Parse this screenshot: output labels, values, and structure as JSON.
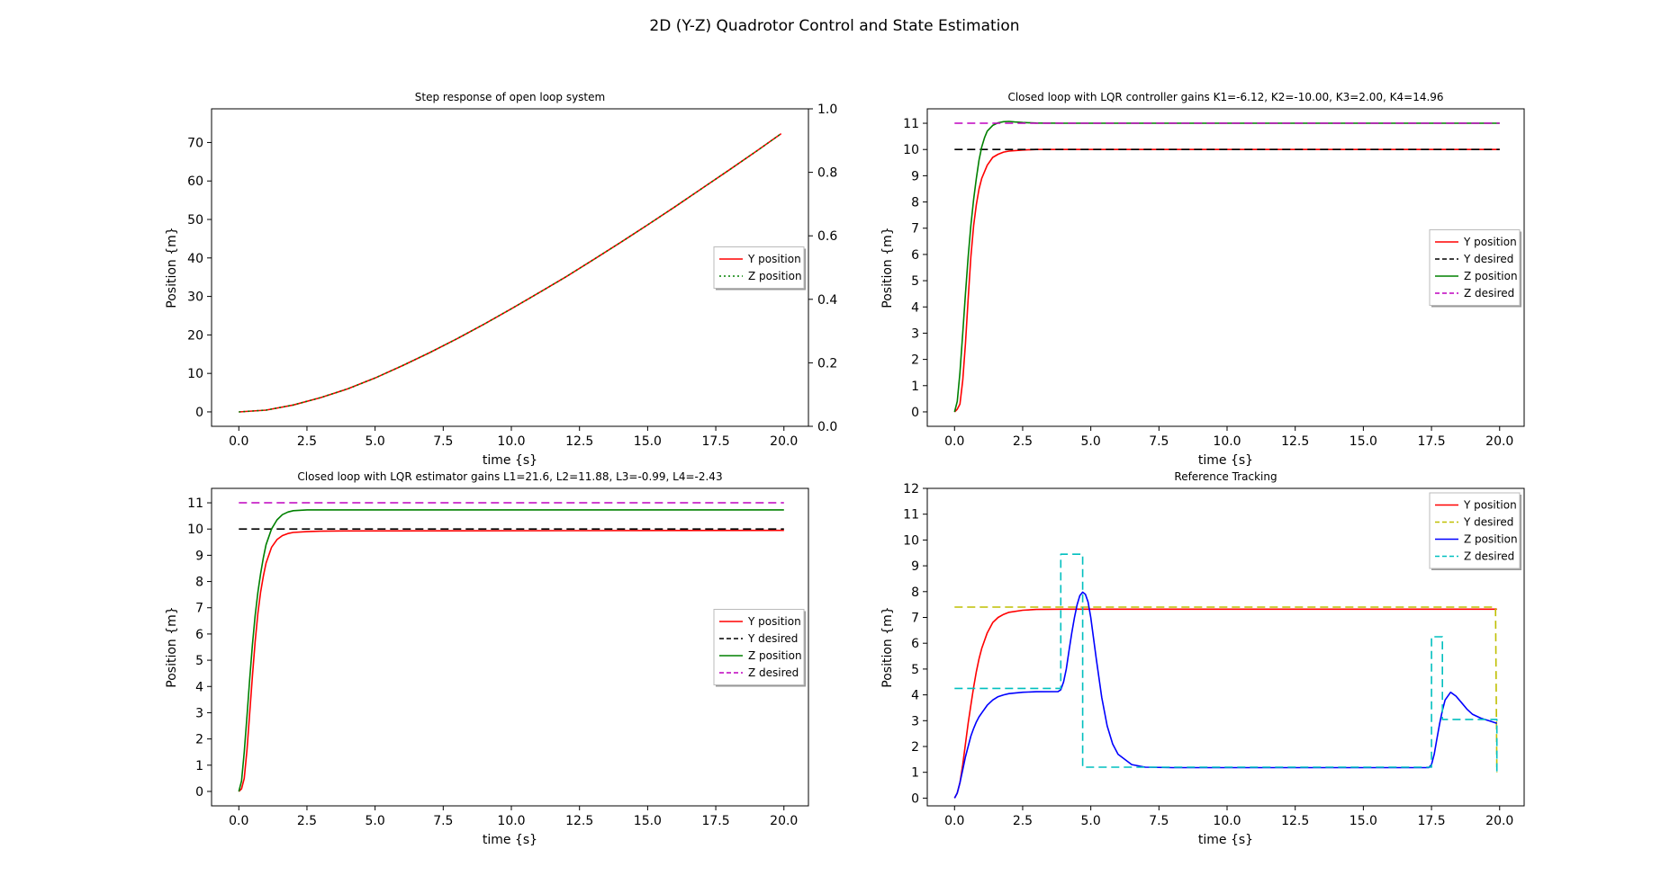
{
  "figure": {
    "title": "2D (Y-Z) Quadrotor Control and State Estimation"
  },
  "chart_data": [
    {
      "type": "line",
      "title": "Step response of open loop system",
      "xlabel": "time {s}",
      "ylabel": "Position {m}",
      "xlim": [
        -1.0,
        20.9
      ],
      "ylim": [
        -3.75,
        78.75
      ],
      "xticks": [
        "0.0",
        "2.5",
        "5.0",
        "7.5",
        "10.0",
        "12.5",
        "15.0",
        "17.5",
        "20.0"
      ],
      "yticks": [
        "0",
        "10",
        "20",
        "30",
        "40",
        "50",
        "60",
        "70"
      ],
      "secondary_y": {
        "ylim": [
          0,
          1
        ],
        "ticks": [
          "0.0",
          "0.2",
          "0.4",
          "0.6",
          "0.8",
          "1.0"
        ]
      },
      "grid": false,
      "legend": "center-right",
      "series": [
        {
          "name": "Y position",
          "color": "#ff0000",
          "style": "solid",
          "x": [
            0,
            1,
            2,
            3,
            4,
            5,
            6,
            7,
            8,
            9,
            10,
            11,
            12,
            13,
            14,
            15,
            16,
            17,
            18,
            19,
            19.9
          ],
          "y": [
            0,
            0.45,
            1.8,
            3.7,
            6.0,
            8.8,
            12.0,
            15.4,
            19.0,
            22.8,
            26.8,
            30.9,
            35.1,
            39.5,
            44.0,
            48.6,
            53.3,
            58.1,
            62.9,
            67.8,
            72.3
          ]
        },
        {
          "name": "Z position",
          "color": "#008000",
          "style": "dotted",
          "x": [
            0,
            1,
            2,
            3,
            4,
            5,
            6,
            7,
            8,
            9,
            10,
            11,
            12,
            13,
            14,
            15,
            16,
            17,
            18,
            19,
            19.9
          ],
          "y": [
            0,
            0.45,
            1.8,
            3.7,
            6.0,
            8.8,
            12.0,
            15.4,
            19.0,
            22.8,
            26.8,
            30.9,
            35.1,
            39.5,
            44.0,
            48.6,
            53.3,
            58.1,
            62.9,
            67.8,
            72.3
          ]
        }
      ]
    },
    {
      "type": "line",
      "title": "Closed loop with  LQR controller gains K1=-6.12, K2=-10.00, K3=2.00, K4=14.96",
      "xlabel": "time {s}",
      "ylabel": "Position {m}",
      "xlim": [
        -1.0,
        20.9
      ],
      "ylim": [
        -0.55,
        11.55
      ],
      "xticks": [
        "0.0",
        "2.5",
        "5.0",
        "7.5",
        "10.0",
        "12.5",
        "15.0",
        "17.5",
        "20.0"
      ],
      "yticks": [
        "0",
        "1",
        "2",
        "3",
        "4",
        "5",
        "6",
        "7",
        "8",
        "9",
        "10",
        "11"
      ],
      "grid": false,
      "legend": "center-right",
      "series": [
        {
          "name": "Y position",
          "color": "#ff0000",
          "style": "solid",
          "x": [
            0,
            0.1,
            0.2,
            0.3,
            0.4,
            0.5,
            0.6,
            0.7,
            0.8,
            0.9,
            1.0,
            1.2,
            1.4,
            1.6,
            1.8,
            2.0,
            2.5,
            3.0,
            4.0,
            20.0
          ],
          "y": [
            0,
            0.1,
            0.3,
            1.2,
            2.6,
            4.3,
            5.9,
            7.1,
            7.9,
            8.5,
            8.9,
            9.4,
            9.7,
            9.82,
            9.9,
            9.94,
            9.98,
            10.0,
            10.0,
            10.0
          ]
        },
        {
          "name": "Y desired",
          "color": "#000000",
          "style": "dashed",
          "x": [
            0,
            20.0
          ],
          "y": [
            10,
            10
          ]
        },
        {
          "name": "Z position",
          "color": "#008000",
          "style": "solid",
          "x": [
            0,
            0.1,
            0.2,
            0.3,
            0.4,
            0.5,
            0.6,
            0.7,
            0.8,
            0.9,
            1.0,
            1.1,
            1.2,
            1.4,
            1.6,
            1.8,
            2.0,
            2.2,
            2.5,
            3.0,
            4.0,
            20.0
          ],
          "y": [
            0,
            0.4,
            1.5,
            3.0,
            4.5,
            5.9,
            7.1,
            8.1,
            8.9,
            9.6,
            10.1,
            10.45,
            10.7,
            10.92,
            11.02,
            11.06,
            11.07,
            11.05,
            11.03,
            11.01,
            11.0,
            11.0
          ]
        },
        {
          "name": "Z desired",
          "color": "#bf00bf",
          "style": "dashed",
          "x": [
            0,
            20.0
          ],
          "y": [
            11,
            11
          ]
        }
      ]
    },
    {
      "type": "line",
      "title": "Closed loop with LQR estimator gains L1=21.6, L2=11.88, L3=-0.99, L4=-2.43",
      "xlabel": "time {s}",
      "ylabel": "Position {m}",
      "xlim": [
        -1.0,
        20.9
      ],
      "ylim": [
        -0.55,
        11.55
      ],
      "xticks": [
        "0.0",
        "2.5",
        "5.0",
        "7.5",
        "10.0",
        "12.5",
        "15.0",
        "17.5",
        "20.0"
      ],
      "yticks": [
        "0",
        "1",
        "2",
        "3",
        "4",
        "5",
        "6",
        "7",
        "8",
        "9",
        "10",
        "11"
      ],
      "grid": false,
      "legend": "center-right",
      "series": [
        {
          "name": "Y position",
          "color": "#ff0000",
          "style": "solid",
          "x": [
            0,
            0.1,
            0.2,
            0.3,
            0.4,
            0.5,
            0.6,
            0.7,
            0.8,
            0.9,
            1.0,
            1.2,
            1.4,
            1.6,
            1.8,
            2.0,
            2.5,
            3.0,
            4.0,
            20.0
          ],
          "y": [
            0,
            0.1,
            0.5,
            1.6,
            3.0,
            4.4,
            5.7,
            6.8,
            7.6,
            8.2,
            8.7,
            9.3,
            9.6,
            9.75,
            9.83,
            9.87,
            9.9,
            9.92,
            9.93,
            9.95
          ]
        },
        {
          "name": "Y desired",
          "color": "#000000",
          "style": "dashed",
          "x": [
            0,
            20.0
          ],
          "y": [
            10,
            10
          ]
        },
        {
          "name": "Z position",
          "color": "#008000",
          "style": "solid",
          "x": [
            0,
            0.1,
            0.2,
            0.3,
            0.4,
            0.5,
            0.6,
            0.7,
            0.8,
            0.9,
            1.0,
            1.2,
            1.4,
            1.6,
            1.8,
            2.0,
            2.5,
            3.0,
            4.0,
            20.0
          ],
          "y": [
            0,
            0.4,
            1.5,
            2.9,
            4.3,
            5.6,
            6.7,
            7.6,
            8.3,
            8.9,
            9.4,
            10.0,
            10.35,
            10.55,
            10.65,
            10.7,
            10.73,
            10.73,
            10.73,
            10.73
          ]
        },
        {
          "name": "Z desired",
          "color": "#bf00bf",
          "style": "dashed",
          "x": [
            0,
            20.0
          ],
          "y": [
            11,
            11
          ]
        }
      ]
    },
    {
      "type": "line",
      "title": "Reference Tracking",
      "xlabel": "time {s}",
      "ylabel": "Position {m}",
      "xlim": [
        -1.0,
        20.9
      ],
      "ylim": [
        -0.3,
        12.0
      ],
      "xticks": [
        "0.0",
        "2.5",
        "5.0",
        "7.5",
        "10.0",
        "12.5",
        "15.0",
        "17.5",
        "20.0"
      ],
      "yticks": [
        "0",
        "1",
        "2",
        "3",
        "4",
        "5",
        "6",
        "7",
        "8",
        "9",
        "10",
        "11",
        "12"
      ],
      "grid": false,
      "legend": "top-right",
      "series": [
        {
          "name": "Y position",
          "color": "#ff0000",
          "style": "solid",
          "x": [
            0,
            0.1,
            0.2,
            0.3,
            0.4,
            0.5,
            0.6,
            0.7,
            0.8,
            0.9,
            1.0,
            1.2,
            1.4,
            1.6,
            1.8,
            2.0,
            2.5,
            3.0,
            4.0,
            19.9
          ],
          "y": [
            0,
            0.2,
            0.6,
            1.3,
            2.1,
            2.9,
            3.6,
            4.3,
            4.9,
            5.4,
            5.8,
            6.4,
            6.8,
            7.0,
            7.12,
            7.2,
            7.28,
            7.31,
            7.32,
            7.32
          ]
        },
        {
          "name": "Y desired",
          "color": "#bfbf00",
          "style": "dashed",
          "x": [
            0,
            19.85,
            19.9
          ],
          "y": [
            7.4,
            7.4,
            1.0
          ]
        },
        {
          "name": "Z position",
          "color": "#0000ff",
          "style": "solid",
          "x": [
            0,
            0.1,
            0.2,
            0.3,
            0.4,
            0.5,
            0.6,
            0.7,
            0.8,
            0.9,
            1.0,
            1.2,
            1.4,
            1.6,
            1.8,
            2.0,
            2.5,
            3.0,
            3.8,
            3.9,
            4.0,
            4.1,
            4.2,
            4.3,
            4.4,
            4.5,
            4.6,
            4.7,
            4.8,
            4.9,
            5.0,
            5.2,
            5.4,
            5.6,
            5.8,
            6.0,
            6.5,
            7.0,
            8.0,
            17.4,
            17.5,
            17.6,
            17.7,
            17.8,
            17.9,
            18.0,
            18.2,
            18.4,
            18.6,
            18.8,
            19.0,
            19.3,
            19.6,
            19.9
          ],
          "y": [
            0,
            0.2,
            0.6,
            1.1,
            1.6,
            2.0,
            2.4,
            2.7,
            2.95,
            3.15,
            3.3,
            3.6,
            3.8,
            3.93,
            4.0,
            4.05,
            4.1,
            4.12,
            4.13,
            4.2,
            4.5,
            5.0,
            5.7,
            6.4,
            7.0,
            7.5,
            7.85,
            7.98,
            7.9,
            7.6,
            7.0,
            5.4,
            3.9,
            2.8,
            2.1,
            1.7,
            1.3,
            1.2,
            1.18,
            1.18,
            1.3,
            1.7,
            2.3,
            2.9,
            3.4,
            3.8,
            4.1,
            3.95,
            3.7,
            3.45,
            3.25,
            3.1,
            3.0,
            2.9
          ]
        },
        {
          "name": "Z desired",
          "color": "#00bfbf",
          "style": "dashed",
          "x": [
            0,
            3.9,
            3.9,
            4.7,
            4.7,
            17.5,
            17.5,
            17.9,
            17.9,
            19.9,
            19.9
          ],
          "y": [
            4.25,
            4.25,
            9.45,
            9.45,
            1.2,
            1.2,
            6.25,
            6.25,
            3.05,
            3.05,
            1.0
          ]
        }
      ]
    }
  ]
}
